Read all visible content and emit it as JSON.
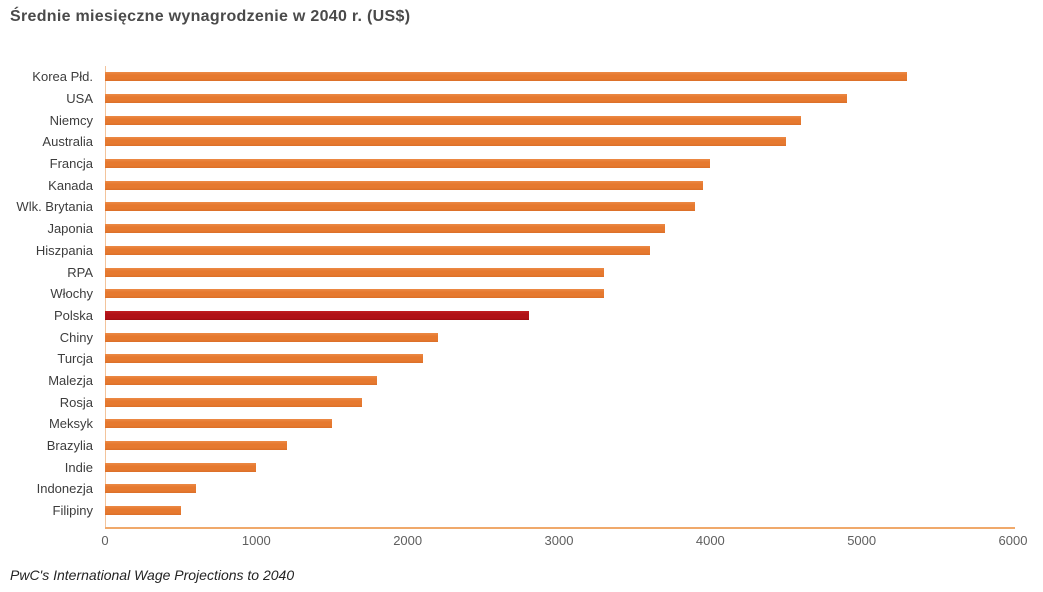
{
  "title": "Średnie miesięczne wynagrodzenie w 2040 r. (US$)",
  "source_note": "PwC's International Wage Projections to 2040",
  "chart_data": {
    "type": "bar",
    "orientation": "horizontal",
    "title": "Średnie miesięczne wynagrodzenie w 2040 r. (US$)",
    "xlabel": "",
    "ylabel": "",
    "categories": [
      "Korea Płd.",
      "USA",
      "Niemcy",
      "Australia",
      "Francja",
      "Kanada",
      "Wlk. Brytania",
      "Japonia",
      "Hiszpania",
      "RPA",
      "Włochy",
      "Polska",
      "Chiny",
      "Turcja",
      "Malezja",
      "Rosja",
      "Meksyk",
      "Brazylia",
      "Indie",
      "Indonezja",
      "Filipiny"
    ],
    "values": [
      5300,
      4900,
      4600,
      4500,
      4000,
      3950,
      3900,
      3700,
      3600,
      3300,
      3300,
      2800,
      2200,
      2100,
      1800,
      1700,
      1500,
      1200,
      1000,
      600,
      500
    ],
    "highlighted_category": "Polska",
    "xlim": [
      0,
      6000
    ],
    "x_ticks": [
      0,
      1000,
      2000,
      3000,
      4000,
      5000,
      6000
    ],
    "grid": false,
    "legend": false,
    "colors": {
      "bar": "#e6792f",
      "highlight": "#b01116",
      "axis_line": "#f0a96b",
      "y_axis_line": "#f3c49c",
      "tick_label": "#5f5f5f",
      "category_label": "#3d3d3d",
      "title": "#4a4a4a"
    }
  }
}
